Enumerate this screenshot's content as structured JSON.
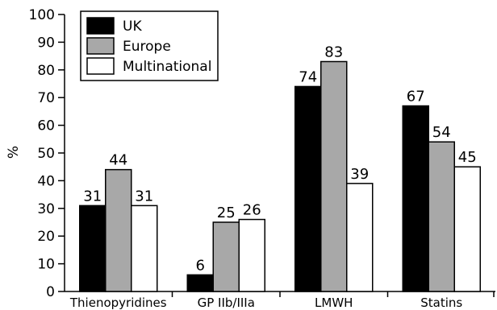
{
  "chart_data": {
    "type": "bar",
    "ylabel": "%",
    "xlabel": "",
    "ylim": [
      0,
      100
    ],
    "yticks": [
      0,
      10,
      20,
      30,
      40,
      50,
      60,
      70,
      80,
      90,
      100
    ],
    "tick_labels": [
      "0",
      "10",
      "20",
      "30",
      "40",
      "50",
      "60",
      "70",
      "80",
      "90",
      "100"
    ],
    "categories": [
      "Thienopyridines",
      "GP IIb/IIIa",
      "LMWH",
      "Statins"
    ],
    "series": [
      {
        "name": "UK",
        "values": [
          31,
          6,
          74,
          67
        ],
        "labels": [
          "31",
          "6",
          "74",
          "67"
        ],
        "color": "#000000"
      },
      {
        "name": "Europe",
        "values": [
          44,
          25,
          83,
          54
        ],
        "labels": [
          "44",
          "25",
          "83",
          "54"
        ],
        "color": "#a8a8a8"
      },
      {
        "name": "Multinational",
        "values": [
          31,
          26,
          39,
          45
        ],
        "labels": [
          "31",
          "26",
          "39",
          "45"
        ],
        "color": "#ffffff"
      }
    ],
    "legend_position": "top-left",
    "grid": false
  }
}
